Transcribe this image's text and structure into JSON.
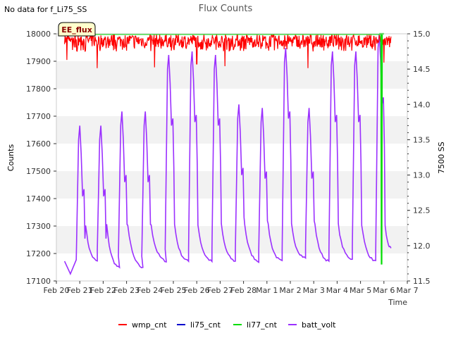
{
  "no_data_note": "No data for f_Li75_SS",
  "chart_data": {
    "type": "line",
    "title": "Flux Counts",
    "xlabel": "Time",
    "ylabel": "Counts",
    "y2label": "7500 SS",
    "badge": "EE_flux",
    "x_ticks": [
      "Feb 20",
      "Feb 21",
      "Feb 22",
      "Feb 23",
      "Feb 24",
      "Feb 25",
      "Feb 26",
      "Feb 27",
      "Feb 28",
      "Mar 1",
      "Mar 2",
      "Mar 3",
      "Mar 4",
      "Mar 5",
      "Mar 6",
      "Mar 7"
    ],
    "xlim_days": [
      0,
      15
    ],
    "ylim": [
      17100,
      18000
    ],
    "y_ticks": [
      17100,
      17200,
      17300,
      17400,
      17500,
      17600,
      17700,
      17800,
      17900,
      18000
    ],
    "y2lim": [
      11.5,
      15.0
    ],
    "y2_ticks": [
      11.5,
      12.0,
      12.5,
      13.0,
      13.5,
      14.0,
      14.5,
      15.0
    ],
    "grid": "horizontal bands",
    "legend_position": "bottom",
    "series": [
      {
        "name": "wmp_cnt",
        "axis": "left",
        "color": "#ff0000",
        "x_start": 0.35,
        "x_end": 14.3,
        "base": 17975,
        "spread": 30,
        "dips": [
          [
            0.45,
            17905
          ],
          [
            1.75,
            17875
          ],
          [
            4.2,
            17878
          ],
          [
            6.0,
            17890
          ],
          [
            7.2,
            17882
          ],
          [
            10.75,
            17875
          ],
          [
            14.0,
            17895
          ]
        ]
      },
      {
        "name": "li75_cnt",
        "axis": "left",
        "color": "#0000cc",
        "values": []
      },
      {
        "name": "li77_cnt",
        "axis": "left",
        "color": "#00dd00",
        "x": [
          13.8,
          13.88,
          13.9,
          13.92,
          13.95,
          14.0
        ],
        "values": [
          18000,
          18000,
          17160,
          18000,
          18000,
          18000
        ]
      },
      {
        "name": "batt_volt",
        "axis": "right",
        "color": "#9b30ff",
        "peaks": [
          [
            1.0,
            13.7
          ],
          [
            1.9,
            13.7
          ],
          [
            2.8,
            13.9
          ],
          [
            3.8,
            13.9
          ],
          [
            4.8,
            14.7
          ],
          [
            5.8,
            14.75
          ],
          [
            6.8,
            14.7
          ],
          [
            7.8,
            14.0
          ],
          [
            8.8,
            13.95
          ],
          [
            9.8,
            14.8
          ],
          [
            10.8,
            13.95
          ],
          [
            11.8,
            14.75
          ],
          [
            12.8,
            14.75
          ],
          [
            13.8,
            15.0
          ]
        ],
        "troughs": [
          [
            0.35,
            11.75
          ],
          [
            0.6,
            11.6
          ],
          [
            1.75,
            11.75
          ],
          [
            2.7,
            11.65
          ],
          [
            3.7,
            11.65
          ],
          [
            4.7,
            11.75
          ],
          [
            5.65,
            11.75
          ],
          [
            6.65,
            11.75
          ],
          [
            7.65,
            11.75
          ],
          [
            8.65,
            11.75
          ],
          [
            9.65,
            11.75
          ],
          [
            10.65,
            11.8
          ],
          [
            11.65,
            11.75
          ],
          [
            12.65,
            11.78
          ],
          [
            13.65,
            11.75
          ],
          [
            14.3,
            11.95
          ]
        ]
      }
    ]
  }
}
